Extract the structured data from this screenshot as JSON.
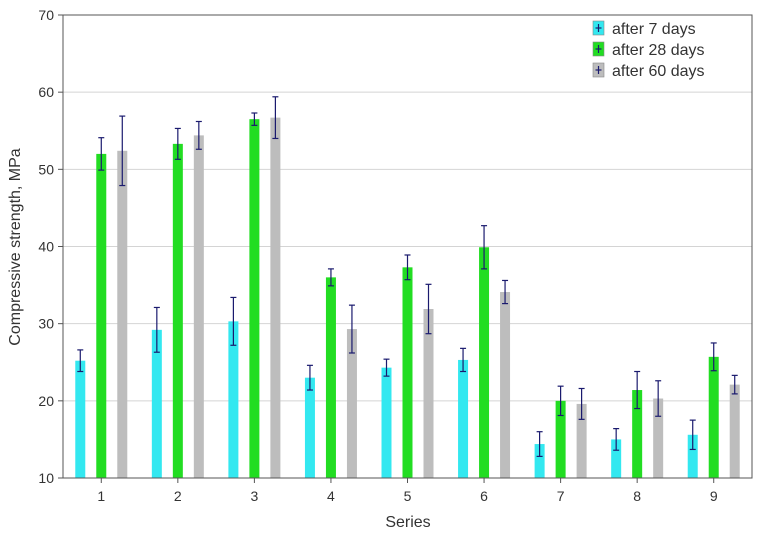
{
  "chart_data": {
    "type": "bar",
    "xlabel": "Series",
    "ylabel": "Compressive strength, MPa",
    "ylim": [
      10,
      70
    ],
    "yticks": [
      10,
      20,
      30,
      40,
      50,
      60,
      70
    ],
    "grid": true,
    "legend_position": "top-right",
    "categories": [
      "1",
      "2",
      "3",
      "4",
      "5",
      "6",
      "7",
      "8",
      "9"
    ],
    "series": [
      {
        "name": "after 7 days",
        "color": "#33e8f0",
        "values": [
          25.2,
          29.2,
          30.3,
          23.0,
          24.3,
          25.3,
          14.4,
          15.0,
          15.6
        ],
        "errors": [
          1.4,
          2.9,
          3.1,
          1.6,
          1.1,
          1.5,
          1.6,
          1.4,
          1.9
        ]
      },
      {
        "name": "after 28 days",
        "color": "#22dd22",
        "values": [
          52.0,
          53.3,
          56.5,
          36.0,
          37.3,
          39.9,
          20.0,
          21.4,
          25.7
        ],
        "errors": [
          2.1,
          2.0,
          0.8,
          1.1,
          1.6,
          2.8,
          1.9,
          2.4,
          1.8
        ]
      },
      {
        "name": "after 60 days",
        "color": "#bdbdbd",
        "values": [
          52.4,
          54.4,
          56.7,
          29.3,
          31.9,
          34.1,
          19.6,
          20.3,
          22.1
        ],
        "errors": [
          4.5,
          1.8,
          2.7,
          3.1,
          3.2,
          1.5,
          2.0,
          2.3,
          1.2
        ]
      }
    ]
  }
}
